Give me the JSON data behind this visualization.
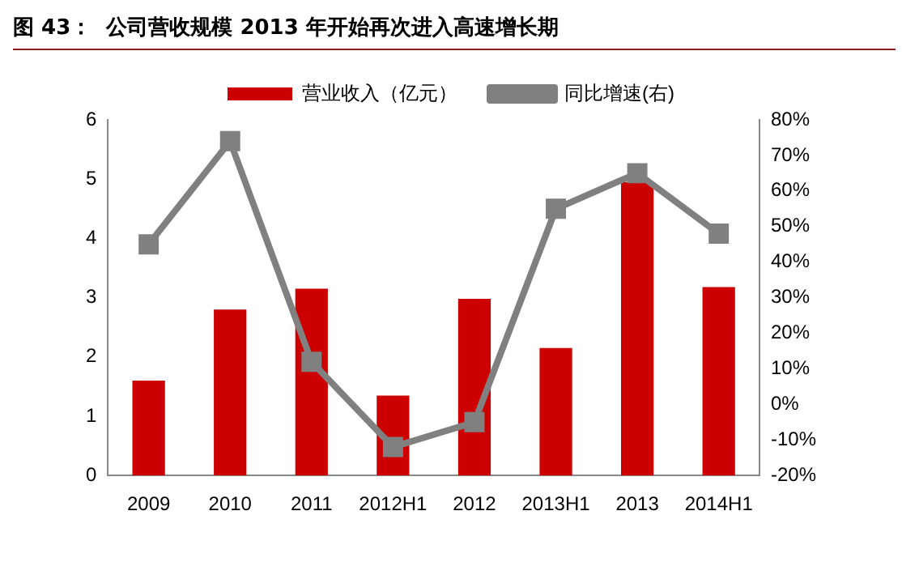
{
  "chart_data": {
    "type": "bar",
    "title": "图 43：  公司营收规模 2013 年开始再次进入高速增长期",
    "categories": [
      "2009",
      "2010",
      "2011",
      "2012H1",
      "2012",
      "2013H1",
      "2013",
      "2014H1"
    ],
    "series": [
      {
        "name": "营业收入（亿元）",
        "color": "#cc0000",
        "values": [
          1.6,
          2.8,
          3.15,
          1.35,
          2.98,
          2.15,
          4.95,
          3.18
        ]
      },
      {
        "name": "同比增速(右)",
        "type": "line",
        "axis": "y2",
        "color": "#808080",
        "values": [
          45,
          74,
          12,
          -12,
          -5,
          55,
          65,
          48
        ]
      }
    ],
    "ylim": [
      0,
      6
    ],
    "yticks": [
      0,
      1,
      2,
      3,
      4,
      5,
      6
    ],
    "y2lim": [
      -20,
      80
    ],
    "y2ticks": [
      {
        "value": -20,
        "label": "-20%"
      },
      {
        "value": -10,
        "label": "-10%"
      },
      {
        "value": 0,
        "label": "0%"
      },
      {
        "value": 10,
        "label": "10%"
      },
      {
        "value": 20,
        "label": "20%"
      },
      {
        "value": 30,
        "label": "30%"
      },
      {
        "value": 40,
        "label": "40%"
      },
      {
        "value": 50,
        "label": "50%"
      },
      {
        "value": 60,
        "label": "60%"
      },
      {
        "value": 70,
        "label": "70%"
      },
      {
        "value": 80,
        "label": "80%"
      }
    ],
    "grid": false,
    "legend": "top",
    "marker": "square",
    "line_style": "solid"
  }
}
